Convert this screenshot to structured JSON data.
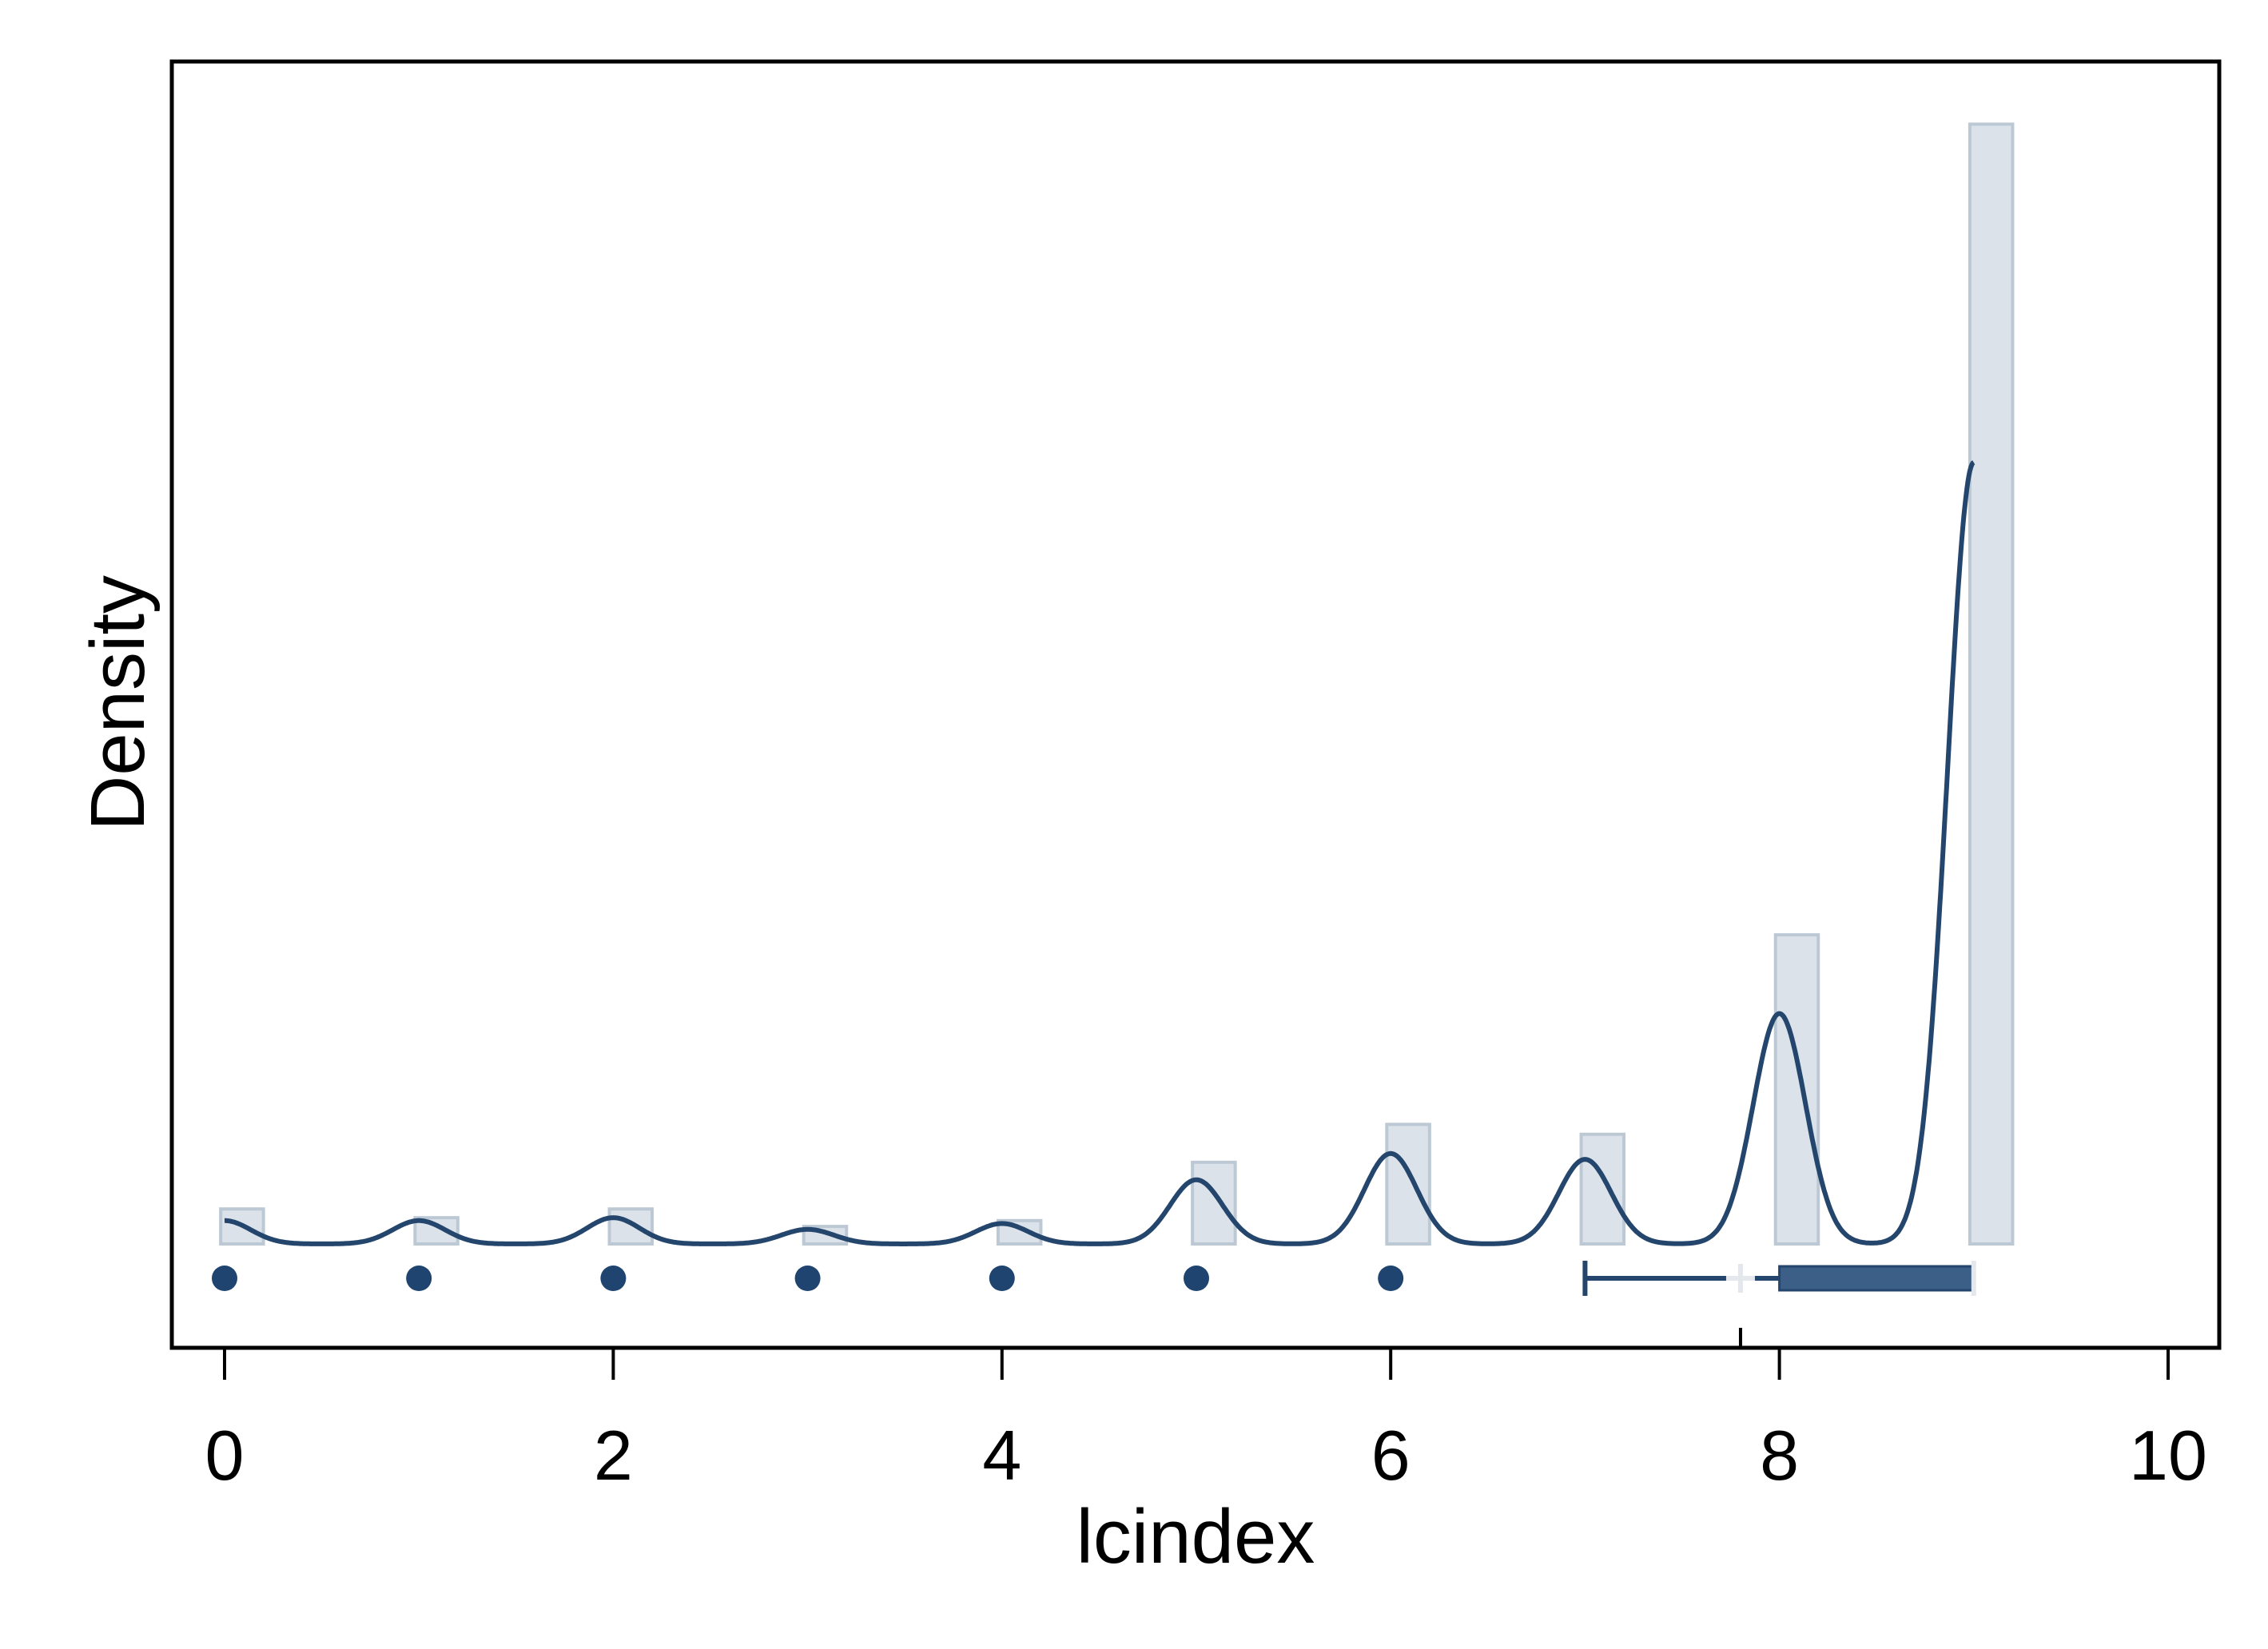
{
  "chart_data": {
    "type": "bar",
    "xlabel": "lcindex",
    "ylabel": "Density",
    "xlim": [
      -0.25,
      10.25
    ],
    "x_ticks": [
      "0",
      "2",
      "4",
      "6",
      "8",
      "10"
    ],
    "x_tick_values": [
      0,
      2,
      4,
      6,
      8,
      10
    ],
    "grid": false,
    "legend": "none",
    "histogram": {
      "bin_width": 0.22,
      "bins": [
        {
          "x": 0,
          "density": 0.06
        },
        {
          "x": 1,
          "density": 0.045
        },
        {
          "x": 2,
          "density": 0.06
        },
        {
          "x": 3,
          "density": 0.03
        },
        {
          "x": 4,
          "density": 0.04
        },
        {
          "x": 5,
          "density": 0.14
        },
        {
          "x": 6,
          "density": 0.205
        },
        {
          "x": 7,
          "density": 0.188
        },
        {
          "x": 8,
          "density": 0.53
        },
        {
          "x": 9,
          "density": 1.92
        }
      ]
    },
    "kde": {
      "bandwidth": 0.2,
      "peaks": [
        {
          "x": 0,
          "density": 0.04
        },
        {
          "x": 1,
          "density": 0.04
        },
        {
          "x": 2,
          "density": 0.045
        },
        {
          "x": 3,
          "density": 0.025
        },
        {
          "x": 4,
          "density": 0.035
        },
        {
          "x": 5,
          "density": 0.11
        },
        {
          "x": 6,
          "density": 0.155
        },
        {
          "x": 7,
          "density": 0.145
        },
        {
          "x": 8,
          "density": 0.395
        },
        {
          "x": 9,
          "density": 1.34
        }
      ]
    },
    "boxplot": {
      "whisker_low": 7,
      "q1": 8,
      "median": 9,
      "q3": 9,
      "whisker_high": 9,
      "mean": 7.8,
      "outliers": [
        0,
        1,
        2,
        3,
        4,
        5,
        6
      ]
    },
    "colors": {
      "bar_fill": "#dbe2ea",
      "bar_stroke": "#bcc9d5",
      "kde_line": "#24466d",
      "box_fill": "#3c5f87",
      "outlier": "#1f4470",
      "mean_marker": "#e4e8ec",
      "frame": "#000000"
    }
  }
}
